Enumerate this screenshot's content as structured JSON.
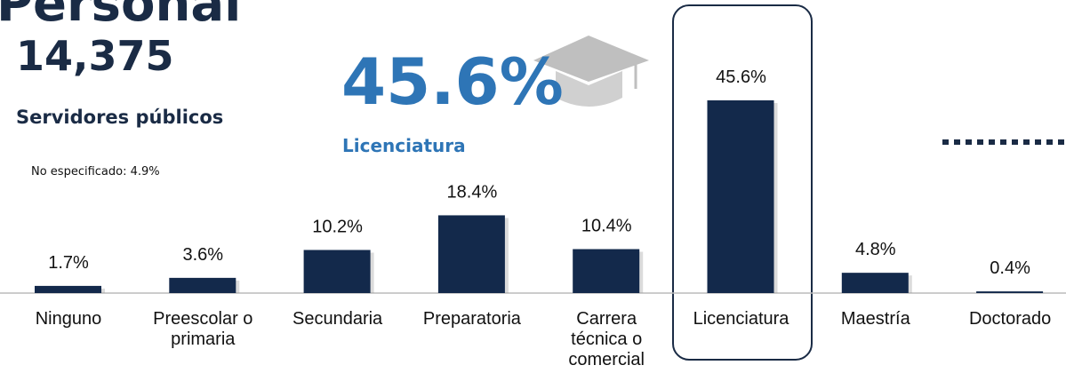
{
  "chart_data": {
    "type": "bar",
    "title": "Personal",
    "total": "14,375",
    "subtitle": "Servidores públicos",
    "highlight_value": "45.6%",
    "highlight_label": "Licenciatura",
    "note": "No especificado: 4.9%",
    "categories": [
      "Ninguno",
      "Preescolar o primaria",
      "Secundaria",
      "Preparatoria",
      "Carrera técnica o comercial",
      "Licenciatura",
      "Maestría",
      "Doctorado"
    ],
    "values": [
      1.7,
      3.6,
      10.2,
      18.4,
      10.4,
      45.6,
      4.8,
      0.4
    ],
    "value_labels": [
      "1.7%",
      "3.6%",
      "10.2%",
      "18.4%",
      "10.4%",
      "45.6%",
      "4.8%",
      "0.4%"
    ],
    "color": "#13294b"
  }
}
